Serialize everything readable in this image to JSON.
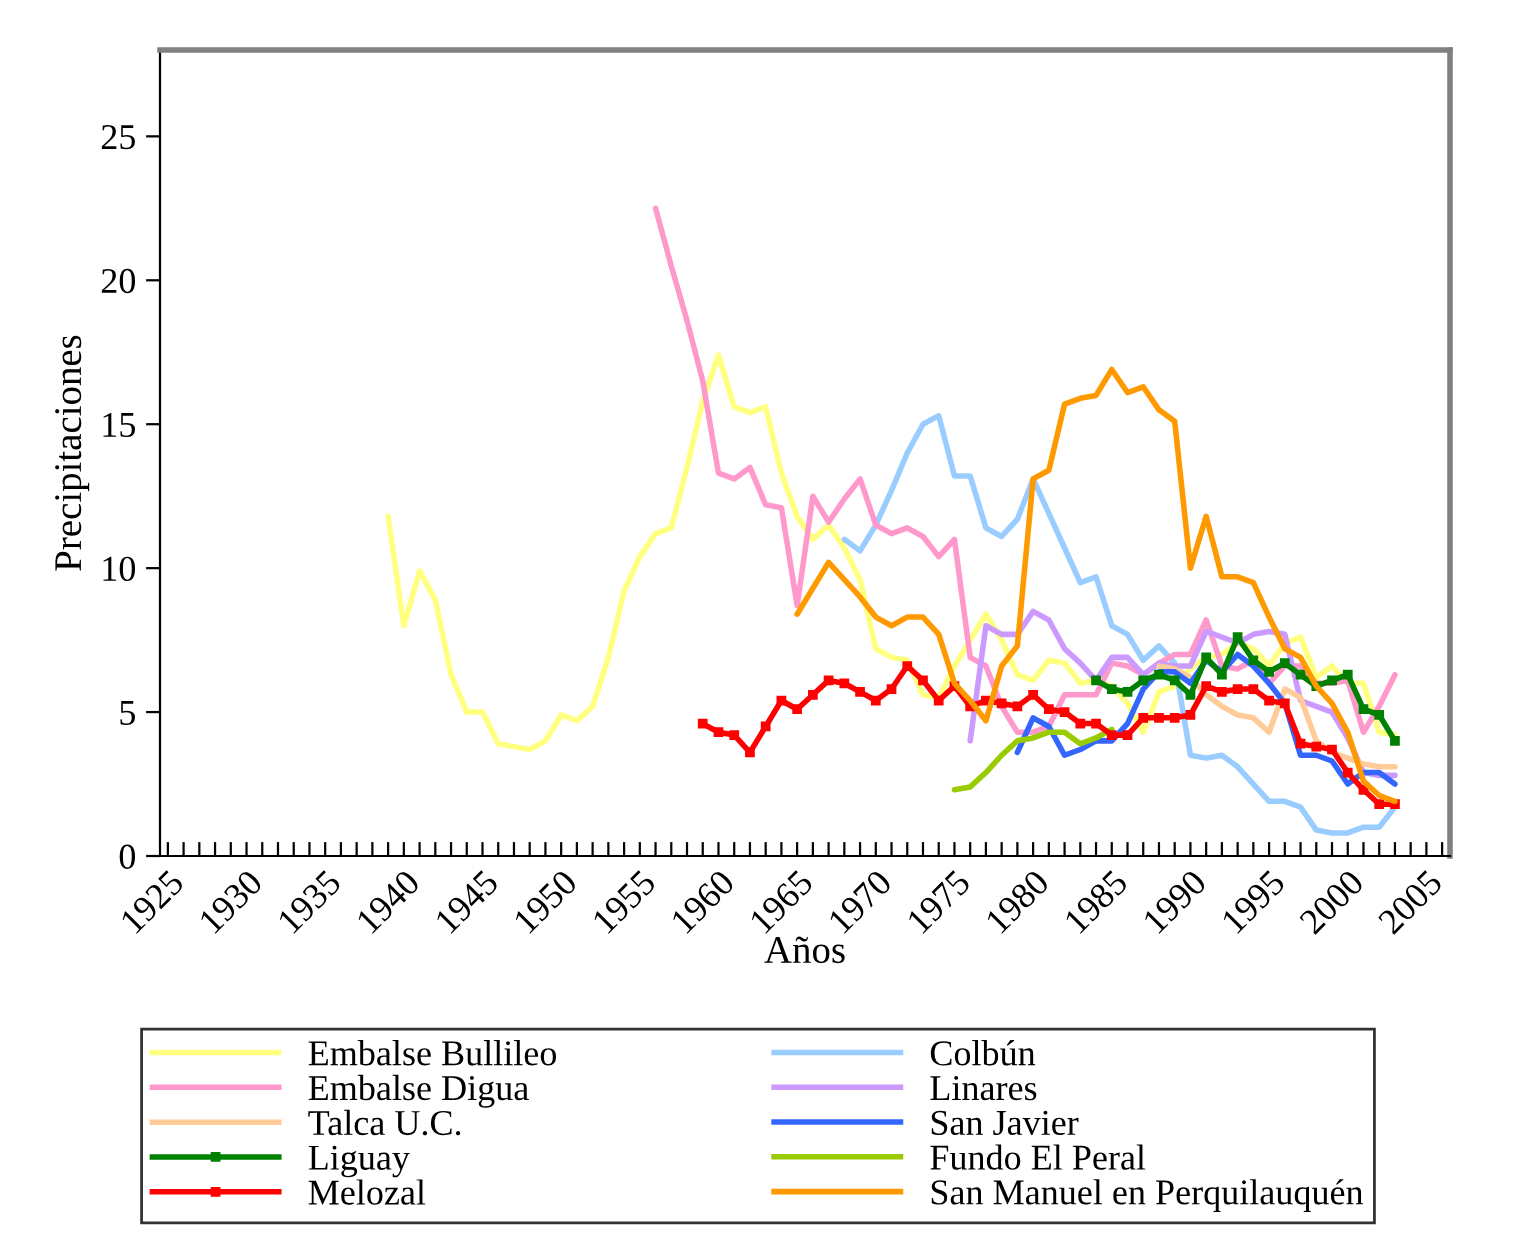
{
  "chart_data": {
    "type": "line",
    "xlabel": "Años",
    "ylabel": "Precipitaciones",
    "x": [
      1939,
      1940,
      1941,
      1942,
      1943,
      1944,
      1945,
      1946,
      1947,
      1948,
      1949,
      1950,
      1951,
      1952,
      1953,
      1954,
      1955,
      1956,
      1957,
      1958,
      1959,
      1960,
      1961,
      1962,
      1963,
      1964,
      1965,
      1966,
      1967,
      1968,
      1969,
      1970,
      1971,
      1972,
      1973,
      1974,
      1975,
      1976,
      1977,
      1978,
      1979,
      1980,
      1981,
      1982,
      1983,
      1984,
      1985,
      1986,
      1987,
      1988,
      1989,
      1990,
      1991,
      1992,
      1993,
      1994,
      1995,
      1996,
      1997,
      1998,
      1999,
      2000,
      2001,
      2002,
      2003
    ],
    "xlim": [
      1924.5,
      2006.5
    ],
    "xticks": [
      1925,
      {
        "value": 1926,
        "label": null
      },
      {
        "value": 1927,
        "label": null
      },
      {
        "value": 1928,
        "label": null
      },
      {
        "value": 1929,
        "label": null
      },
      1930,
      {
        "value": 1931,
        "label": null
      },
      {
        "value": 1932,
        "label": null
      },
      {
        "value": 1933,
        "label": null
      },
      {
        "value": 1934,
        "label": null
      },
      1935,
      {
        "value": 1936,
        "label": null
      },
      {
        "value": 1937,
        "label": null
      },
      {
        "value": 1938,
        "label": null
      },
      {
        "value": 1939,
        "label": null
      },
      1940,
      {
        "value": 1941,
        "label": null
      },
      {
        "value": 1942,
        "label": null
      },
      {
        "value": 1943,
        "label": null
      },
      {
        "value": 1944,
        "label": null
      },
      1945,
      {
        "value": 1946,
        "label": null
      },
      {
        "value": 1947,
        "label": null
      },
      {
        "value": 1948,
        "label": null
      },
      {
        "value": 1949,
        "label": null
      },
      1950,
      {
        "value": 1951,
        "label": null
      },
      {
        "value": 1952,
        "label": null
      },
      {
        "value": 1953,
        "label": null
      },
      {
        "value": 1954,
        "label": null
      },
      1955,
      {
        "value": 1956,
        "label": null
      },
      {
        "value": 1957,
        "label": null
      },
      {
        "value": 1958,
        "label": null
      },
      {
        "value": 1959,
        "label": null
      },
      1960,
      {
        "value": 1961,
        "label": null
      },
      {
        "value": 1962,
        "label": null
      },
      {
        "value": 1963,
        "label": null
      },
      {
        "value": 1964,
        "label": null
      },
      1965,
      {
        "value": 1966,
        "label": null
      },
      {
        "value": 1967,
        "label": null
      },
      {
        "value": 1968,
        "label": null
      },
      {
        "value": 1969,
        "label": null
      },
      1970,
      {
        "value": 1971,
        "label": null
      },
      {
        "value": 1972,
        "label": null
      },
      {
        "value": 1973,
        "label": null
      },
      {
        "value": 1974,
        "label": null
      },
      1975,
      {
        "value": 1976,
        "label": null
      },
      {
        "value": 1977,
        "label": null
      },
      {
        "value": 1978,
        "label": null
      },
      {
        "value": 1979,
        "label": null
      },
      1980,
      {
        "value": 1981,
        "label": null
      },
      {
        "value": 1982,
        "label": null
      },
      {
        "value": 1983,
        "label": null
      },
      {
        "value": 1984,
        "label": null
      },
      1985,
      {
        "value": 1986,
        "label": null
      },
      {
        "value": 1987,
        "label": null
      },
      {
        "value": 1988,
        "label": null
      },
      {
        "value": 1989,
        "label": null
      },
      1990,
      {
        "value": 1991,
        "label": null
      },
      {
        "value": 1992,
        "label": null
      },
      {
        "value": 1993,
        "label": null
      },
      {
        "value": 1994,
        "label": null
      },
      1995,
      {
        "value": 1996,
        "label": null
      },
      {
        "value": 1997,
        "label": null
      },
      {
        "value": 1998,
        "label": null
      },
      {
        "value": 1999,
        "label": null
      },
      2000,
      {
        "value": 2001,
        "label": null
      },
      {
        "value": 2002,
        "label": null
      },
      {
        "value": 2003,
        "label": null
      },
      {
        "value": 2004,
        "label": null
      },
      2005,
      {
        "value": 2006,
        "label": null
      }
    ],
    "ylim": [
      0,
      28
    ],
    "yticks": [
      0,
      5,
      10,
      15,
      20,
      25
    ],
    "grid": false,
    "legend": "bottom",
    "line_style": "solid",
    "series": [
      {
        "name": "Embalse Bullileo",
        "color": "#ffff80",
        "marker": "none",
        "values": [
          11.8,
          8.0,
          9.9,
          8.9,
          6.3,
          5.0,
          5.0,
          3.9,
          3.8,
          3.7,
          4.0,
          4.9,
          4.7,
          5.2,
          6.9,
          9.2,
          10.4,
          11.2,
          11.4,
          13.5,
          15.8,
          17.4,
          15.6,
          15.4,
          15.6,
          13.3,
          11.8,
          11.0,
          11.5,
          10.7,
          9.6,
          7.2,
          6.9,
          6.8,
          5.6,
          5.5,
          6.6,
          7.5,
          8.4,
          7.5,
          6.3,
          6.1,
          6.8,
          6.7,
          6.0,
          6.1,
          5.9,
          5.3,
          4.3,
          5.7,
          5.9,
          6.5,
          6.9,
          7.0,
          7.4,
          7.2,
          6.6,
          7.4,
          7.6,
          6.2,
          6.6,
          6.0,
          6.0,
          4.3,
          4.2
        ]
      },
      {
        "name": "Colbún",
        "color": "#99ccff",
        "marker": "none",
        "values": [
          null,
          null,
          null,
          null,
          null,
          null,
          null,
          null,
          null,
          null,
          null,
          null,
          null,
          null,
          null,
          null,
          null,
          null,
          null,
          null,
          null,
          null,
          null,
          null,
          null,
          null,
          null,
          null,
          null,
          11.0,
          10.6,
          11.5,
          12.7,
          14.0,
          15.0,
          15.3,
          13.2,
          13.2,
          11.4,
          11.1,
          11.7,
          13.1,
          11.9,
          10.7,
          9.5,
          9.7,
          8.0,
          7.7,
          6.8,
          7.3,
          6.7,
          3.5,
          3.4,
          3.5,
          3.1,
          2.5,
          1.9,
          1.9,
          1.7,
          0.9,
          0.8,
          0.8,
          1.0,
          1.0,
          1.7
        ]
      },
      {
        "name": "Embalse Digua",
        "color": "#ff99cc",
        "marker": "none",
        "values": [
          null,
          null,
          null,
          null,
          null,
          null,
          null,
          null,
          null,
          null,
          null,
          null,
          null,
          null,
          null,
          null,
          null,
          22.5,
          20.5,
          18.6,
          16.5,
          13.3,
          13.1,
          13.5,
          12.2,
          12.1,
          8.7,
          12.5,
          11.6,
          12.4,
          13.1,
          11.5,
          11.2,
          11.4,
          11.1,
          10.4,
          11.0,
          6.9,
          6.6,
          5.2,
          4.3,
          4.3,
          4.5,
          5.6,
          5.6,
          5.6,
          6.7,
          6.6,
          6.3,
          6.7,
          7.0,
          7.0,
          8.2,
          6.6,
          6.5,
          6.8,
          6.0,
          6.6,
          6.6,
          6.0,
          6.0,
          6.1,
          4.3,
          5.2,
          6.3
        ]
      },
      {
        "name": "Linares",
        "color": "#cc99ff",
        "marker": "none",
        "values": [
          null,
          null,
          null,
          null,
          null,
          null,
          null,
          null,
          null,
          null,
          null,
          null,
          null,
          null,
          null,
          null,
          null,
          null,
          null,
          null,
          null,
          null,
          null,
          null,
          null,
          null,
          null,
          null,
          null,
          null,
          null,
          null,
          null,
          null,
          null,
          null,
          null,
          4.0,
          8.0,
          7.7,
          7.7,
          8.5,
          8.2,
          7.2,
          6.7,
          6.1,
          6.9,
          6.9,
          6.3,
          6.7,
          6.6,
          6.6,
          7.8,
          7.6,
          7.4,
          7.7,
          7.8,
          7.7,
          5.4,
          5.2,
          5.0,
          4.1,
          2.9,
          2.8,
          2.8
        ]
      },
      {
        "name": "Talca U.C.",
        "color": "#ffcc99",
        "marker": "none",
        "values": [
          null,
          null,
          null,
          null,
          null,
          null,
          null,
          null,
          null,
          null,
          null,
          null,
          null,
          null,
          null,
          null,
          null,
          null,
          null,
          null,
          null,
          null,
          null,
          null,
          null,
          null,
          null,
          null,
          null,
          null,
          null,
          null,
          null,
          null,
          null,
          null,
          null,
          null,
          null,
          null,
          null,
          null,
          null,
          null,
          null,
          null,
          null,
          null,
          null,
          6.6,
          6.5,
          6.2,
          5.6,
          5.2,
          4.9,
          4.8,
          4.3,
          5.8,
          5.5,
          4.0,
          3.6,
          3.4,
          3.2,
          3.1,
          3.1
        ]
      },
      {
        "name": "San Javier",
        "color": "#3366ff",
        "marker": "none",
        "values": [
          null,
          null,
          null,
          null,
          null,
          null,
          null,
          null,
          null,
          null,
          null,
          null,
          null,
          null,
          null,
          null,
          null,
          null,
          null,
          null,
          null,
          null,
          null,
          null,
          null,
          null,
          null,
          null,
          null,
          null,
          null,
          null,
          null,
          null,
          null,
          null,
          null,
          null,
          null,
          null,
          3.6,
          4.8,
          4.5,
          3.5,
          3.7,
          4.0,
          4.0,
          4.6,
          5.8,
          6.4,
          6.4,
          6.0,
          6.8,
          6.4,
          7.0,
          6.6,
          6.0,
          5.3,
          3.5,
          3.5,
          3.3,
          2.5,
          2.9,
          2.9,
          2.5
        ]
      },
      {
        "name": "Liguay",
        "color": "#008000",
        "marker": "square",
        "values": [
          null,
          null,
          null,
          null,
          null,
          null,
          null,
          null,
          null,
          null,
          null,
          null,
          null,
          null,
          null,
          null,
          null,
          null,
          null,
          null,
          null,
          null,
          null,
          null,
          null,
          null,
          null,
          null,
          null,
          null,
          null,
          null,
          null,
          null,
          null,
          null,
          null,
          null,
          null,
          null,
          null,
          null,
          null,
          null,
          null,
          6.1,
          5.8,
          5.7,
          6.1,
          6.3,
          6.1,
          5.6,
          6.9,
          6.3,
          7.6,
          6.8,
          6.4,
          6.7,
          6.3,
          5.9,
          6.1,
          6.3,
          5.1,
          4.9,
          4.0
        ]
      },
      {
        "name": "Fundo El Peral",
        "color": "#99cc00",
        "marker": "none",
        "values": [
          null,
          null,
          null,
          null,
          null,
          null,
          null,
          null,
          null,
          null,
          null,
          null,
          null,
          null,
          null,
          null,
          null,
          null,
          null,
          null,
          null,
          null,
          null,
          null,
          null,
          null,
          null,
          null,
          null,
          null,
          null,
          null,
          null,
          null,
          null,
          null,
          2.3,
          2.4,
          2.9,
          3.5,
          4.0,
          4.1,
          4.3,
          4.3,
          3.9,
          4.1,
          4.4,
          null,
          null,
          null,
          null,
          null,
          null,
          null,
          null,
          null,
          null,
          null,
          null,
          null,
          null,
          null,
          null,
          null,
          null
        ]
      },
      {
        "name": "Melozal",
        "color": "#ff0000",
        "marker": "square",
        "values": [
          null,
          null,
          null,
          null,
          null,
          null,
          null,
          null,
          null,
          null,
          null,
          null,
          null,
          null,
          null,
          null,
          null,
          null,
          null,
          null,
          4.6,
          4.3,
          4.2,
          3.6,
          4.5,
          5.4,
          5.1,
          5.6,
          6.1,
          6.0,
          5.7,
          5.4,
          5.8,
          6.6,
          6.1,
          5.4,
          5.9,
          5.2,
          5.4,
          5.3,
          5.2,
          5.6,
          5.1,
          5.0,
          4.6,
          4.6,
          4.2,
          4.2,
          4.8,
          4.8,
          4.8,
          4.9,
          5.9,
          5.7,
          5.8,
          5.8,
          5.4,
          5.3,
          3.9,
          3.8,
          3.7,
          2.9,
          2.3,
          1.8,
          1.8
        ]
      },
      {
        "name": "San Manuel en Perquilauquén",
        "color": "#ff9900",
        "marker": "none",
        "values": [
          null,
          null,
          null,
          null,
          null,
          null,
          null,
          null,
          null,
          null,
          null,
          null,
          null,
          null,
          null,
          null,
          null,
          null,
          null,
          null,
          null,
          null,
          null,
          null,
          null,
          null,
          8.4,
          9.3,
          10.2,
          9.6,
          9.0,
          8.3,
          8.0,
          8.3,
          8.3,
          7.7,
          6.0,
          5.4,
          4.7,
          6.6,
          7.3,
          13.1,
          13.4,
          15.7,
          15.9,
          16.0,
          16.9,
          16.1,
          16.3,
          15.5,
          15.1,
          10.0,
          11.8,
          9.7,
          9.7,
          9.5,
          8.3,
          7.2,
          6.9,
          5.9,
          5.3,
          4.3,
          2.6,
          2.1,
          1.9
        ]
      }
    ]
  }
}
